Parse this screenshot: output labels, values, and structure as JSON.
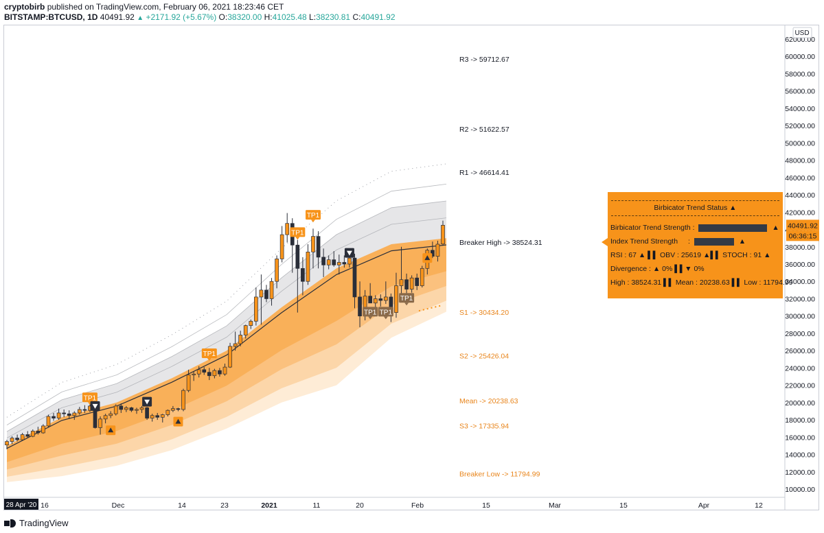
{
  "header": {
    "author": "cryptobirb",
    "published": "published on TradingView.com, February 06, 2021 18:23:46 CET",
    "symbol": "BITSTAMP:BTCUSD, 1D",
    "price": "40491.92",
    "change": "+2171.92 (+5.67%)",
    "open_label": "O:",
    "open": "38320.00",
    "high_label": "H:",
    "high": "41025.48",
    "low_label": "L:",
    "low": "38230.81",
    "close_label": "C:",
    "close": "40491.92"
  },
  "footer": {
    "brand": "TradingView"
  },
  "panel": {
    "title": "Birbicator Trend Status",
    "trend_strength_label": "Birbicator Trend Strength :",
    "trend_strength_value": 0.95,
    "index_strength_label": "Index Trend Strength",
    "index_strength_colon": ":",
    "index_strength_value": 0.55,
    "rsi_row": "RSI : 67 ▲ ▌▌ OBV : 25619 ▲▌▌ STOCH : 91 ▲",
    "divergence_row": "Divergence : ▲ 0% ▌▌▼ 0%",
    "hml_row": "High : 38524.31 ▌▌ Mean : 20238.63 ▌▌ Low : 11794.99"
  },
  "colors": {
    "up_candle": "#f7931a",
    "down_candle": "#2a2e39",
    "band_fill": "#f7931a",
    "grey_fill": "#a5a7ad",
    "tp_dark": "#8a6a4a"
  },
  "chart_data": {
    "type": "candlestick",
    "currency": "USD",
    "ylim": [
      9000,
      63000
    ],
    "y_ticks": [
      "62000.00",
      "60000.00",
      "58000.00",
      "56000.00",
      "54000.00",
      "52000.00",
      "50000.00",
      "48000.00",
      "46000.00",
      "44000.00",
      "42000.00",
      "40000.00",
      "38000.00",
      "36000.00",
      "34000.00",
      "32000.00",
      "30000.00",
      "28000.00",
      "26000.00",
      "24000.00",
      "22000.00",
      "20000.00",
      "18000.00",
      "16000.00",
      "14000.00",
      "12000.00",
      "10000.00"
    ],
    "x_ticks": [
      "16",
      "Dec",
      "14",
      "23",
      "2021",
      "11",
      "20",
      "Feb",
      "15",
      "Mar",
      "15",
      "Apr",
      "12"
    ],
    "x_start_label": "28 Apr '20",
    "last_price_label": "40491.92",
    "countdown_label": "06:36:15",
    "levels": [
      {
        "name": "R3",
        "text": "R3      -> 59712.67",
        "value": 59712.67,
        "style": "dark"
      },
      {
        "name": "R2",
        "text": "R2      -> 51622.57",
        "value": 51622.57,
        "style": "dark"
      },
      {
        "name": "R1",
        "text": "R1      -> 46614.41",
        "value": 46614.41,
        "style": "dark"
      },
      {
        "name": "Breaker High",
        "text": "Breaker High      -> 38524.31",
        "value": 38524.31,
        "style": "dark"
      },
      {
        "name": "S1",
        "text": "S1      -> 30434.20",
        "value": 30434.2,
        "style": "orange"
      },
      {
        "name": "S2",
        "text": "S2      -> 25426.04",
        "value": 25426.04,
        "style": "orange"
      },
      {
        "name": "Mean",
        "text": "Mean      -> 20238.63",
        "value": 20238.63,
        "style": "orange"
      },
      {
        "name": "S3",
        "text": "S3      -> 17335.94",
        "value": 17335.94,
        "style": "orange"
      },
      {
        "name": "Breaker Low",
        "text": "Breaker Low      -> 11794.99",
        "value": 11794.99,
        "style": "orange"
      }
    ],
    "candles": [
      {
        "o": 15100,
        "h": 15700,
        "l": 14600,
        "c": 15500
      },
      {
        "o": 15500,
        "h": 16100,
        "l": 15200,
        "c": 15900
      },
      {
        "o": 15900,
        "h": 16300,
        "l": 15500,
        "c": 15700
      },
      {
        "o": 15700,
        "h": 16500,
        "l": 15600,
        "c": 16300
      },
      {
        "o": 16300,
        "h": 16700,
        "l": 15900,
        "c": 16100
      },
      {
        "o": 16100,
        "h": 16900,
        "l": 16000,
        "c": 16700
      },
      {
        "o": 16700,
        "h": 17200,
        "l": 16300,
        "c": 16500
      },
      {
        "o": 16500,
        "h": 17500,
        "l": 16400,
        "c": 17300
      },
      {
        "o": 17300,
        "h": 18600,
        "l": 17100,
        "c": 18400
      },
      {
        "o": 18400,
        "h": 18800,
        "l": 17900,
        "c": 18200
      },
      {
        "o": 18200,
        "h": 19300,
        "l": 18000,
        "c": 18800
      },
      {
        "o": 18800,
        "h": 19200,
        "l": 18300,
        "c": 18700
      },
      {
        "o": 18700,
        "h": 19100,
        "l": 18100,
        "c": 18500
      },
      {
        "o": 18500,
        "h": 19000,
        "l": 18000,
        "c": 18800
      },
      {
        "o": 18800,
        "h": 19500,
        "l": 18600,
        "c": 19200
      },
      {
        "o": 19200,
        "h": 19700,
        "l": 18800,
        "c": 19100
      },
      {
        "o": 19100,
        "h": 19900,
        "l": 18900,
        "c": 19600
      },
      {
        "o": 19600,
        "h": 19800,
        "l": 17000,
        "c": 17100
      },
      {
        "o": 17100,
        "h": 18400,
        "l": 16300,
        "c": 18100
      },
      {
        "o": 18100,
        "h": 18700,
        "l": 17600,
        "c": 18500
      },
      {
        "o": 18500,
        "h": 19000,
        "l": 18200,
        "c": 18700
      },
      {
        "o": 18700,
        "h": 19800,
        "l": 18500,
        "c": 19600
      },
      {
        "o": 19600,
        "h": 19900,
        "l": 18800,
        "c": 19200
      },
      {
        "o": 19200,
        "h": 19600,
        "l": 18900,
        "c": 19400
      },
      {
        "o": 19400,
        "h": 19500,
        "l": 18900,
        "c": 19100
      },
      {
        "o": 19100,
        "h": 19400,
        "l": 18700,
        "c": 19200
      },
      {
        "o": 19200,
        "h": 19600,
        "l": 18800,
        "c": 19400
      },
      {
        "o": 19400,
        "h": 19500,
        "l": 18000,
        "c": 18200
      },
      {
        "o": 18200,
        "h": 18700,
        "l": 17800,
        "c": 18500
      },
      {
        "o": 18500,
        "h": 18800,
        "l": 18000,
        "c": 18300
      },
      {
        "o": 18300,
        "h": 18700,
        "l": 17700,
        "c": 18600
      },
      {
        "o": 18600,
        "h": 19200,
        "l": 18400,
        "c": 19100
      },
      {
        "o": 19100,
        "h": 19600,
        "l": 18900,
        "c": 19300
      },
      {
        "o": 19300,
        "h": 19400,
        "l": 19000,
        "c": 19200
      },
      {
        "o": 19200,
        "h": 21600,
        "l": 19000,
        "c": 21400
      },
      {
        "o": 21400,
        "h": 23800,
        "l": 21200,
        "c": 23200
      },
      {
        "o": 23200,
        "h": 23600,
        "l": 22500,
        "c": 23300
      },
      {
        "o": 23300,
        "h": 24200,
        "l": 22900,
        "c": 23800
      },
      {
        "o": 23800,
        "h": 24100,
        "l": 23200,
        "c": 23500
      },
      {
        "o": 23500,
        "h": 24000,
        "l": 22600,
        "c": 23100
      },
      {
        "o": 23100,
        "h": 23900,
        "l": 22800,
        "c": 23700
      },
      {
        "o": 23700,
        "h": 24000,
        "l": 23000,
        "c": 23300
      },
      {
        "o": 23300,
        "h": 24500,
        "l": 23100,
        "c": 24100
      },
      {
        "o": 24100,
        "h": 26900,
        "l": 24000,
        "c": 26500
      },
      {
        "o": 26500,
        "h": 28200,
        "l": 26000,
        "c": 26800
      },
      {
        "o": 26800,
        "h": 28300,
        "l": 26500,
        "c": 27800
      },
      {
        "o": 27800,
        "h": 29000,
        "l": 27400,
        "c": 28900
      },
      {
        "o": 28900,
        "h": 29600,
        "l": 28500,
        "c": 29400
      },
      {
        "o": 29400,
        "h": 33300,
        "l": 28900,
        "c": 32200
      },
      {
        "o": 32200,
        "h": 34800,
        "l": 29000,
        "c": 33000
      },
      {
        "o": 33000,
        "h": 33600,
        "l": 31600,
        "c": 32000
      },
      {
        "o": 32000,
        "h": 34400,
        "l": 31200,
        "c": 34000
      },
      {
        "o": 34000,
        "h": 37000,
        "l": 33200,
        "c": 36600
      },
      {
        "o": 36600,
        "h": 40400,
        "l": 36200,
        "c": 39400
      },
      {
        "o": 39400,
        "h": 41900,
        "l": 38500,
        "c": 40700
      },
      {
        "o": 40700,
        "h": 41300,
        "l": 35000,
        "c": 38200
      },
      {
        "o": 38200,
        "h": 38800,
        "l": 30400,
        "c": 35500
      },
      {
        "o": 35500,
        "h": 36800,
        "l": 32400,
        "c": 34000
      },
      {
        "o": 34000,
        "h": 38300,
        "l": 33600,
        "c": 37400
      },
      {
        "o": 37400,
        "h": 40100,
        "l": 35500,
        "c": 39200
      },
      {
        "o": 39200,
        "h": 39800,
        "l": 35500,
        "c": 36800
      },
      {
        "o": 36800,
        "h": 37800,
        "l": 34500,
        "c": 35900
      },
      {
        "o": 35900,
        "h": 37000,
        "l": 35400,
        "c": 36500
      },
      {
        "o": 36500,
        "h": 37500,
        "l": 35700,
        "c": 35900
      },
      {
        "o": 35900,
        "h": 37100,
        "l": 34800,
        "c": 36200
      },
      {
        "o": 36200,
        "h": 37000,
        "l": 35600,
        "c": 36000
      },
      {
        "o": 36000,
        "h": 37800,
        "l": 35600,
        "c": 36700
      },
      {
        "o": 36700,
        "h": 37200,
        "l": 30900,
        "c": 32200
      },
      {
        "o": 32200,
        "h": 34000,
        "l": 28700,
        "c": 30000
      },
      {
        "o": 30000,
        "h": 33000,
        "l": 29500,
        "c": 32300
      },
      {
        "o": 32300,
        "h": 33800,
        "l": 31800,
        "c": 31500
      },
      {
        "o": 31500,
        "h": 32400,
        "l": 30700,
        "c": 32000
      },
      {
        "o": 32000,
        "h": 32500,
        "l": 31100,
        "c": 31800
      },
      {
        "o": 31800,
        "h": 34000,
        "l": 31400,
        "c": 32200
      },
      {
        "o": 32200,
        "h": 32600,
        "l": 29300,
        "c": 30400
      },
      {
        "o": 30400,
        "h": 35000,
        "l": 29800,
        "c": 33500
      },
      {
        "o": 33500,
        "h": 38000,
        "l": 31600,
        "c": 34200
      },
      {
        "o": 34200,
        "h": 34900,
        "l": 32300,
        "c": 33100
      },
      {
        "o": 33100,
        "h": 34700,
        "l": 32700,
        "c": 34400
      },
      {
        "o": 34400,
        "h": 34900,
        "l": 33000,
        "c": 33500
      },
      {
        "o": 33500,
        "h": 35800,
        "l": 33300,
        "c": 35500
      },
      {
        "o": 35500,
        "h": 37800,
        "l": 34800,
        "c": 37600
      },
      {
        "o": 37600,
        "h": 38600,
        "l": 36700,
        "c": 36900
      },
      {
        "o": 36900,
        "h": 38700,
        "l": 36300,
        "c": 38300
      },
      {
        "o": 38320,
        "h": 41025.48,
        "l": 38230.81,
        "c": 40491.92
      }
    ],
    "band_outer": [
      [
        15000,
        10800
      ],
      [
        18300,
        11500
      ],
      [
        20000,
        12700
      ],
      [
        22800,
        14500
      ],
      [
        26000,
        17000
      ],
      [
        31000,
        20000
      ],
      [
        35500,
        22000
      ],
      [
        38300,
        27500
      ],
      [
        39000,
        30500
      ]
    ],
    "signals": [
      {
        "kind": "tp",
        "label": "TP1",
        "candle": 16,
        "value": 20600,
        "style": "orange"
      },
      {
        "kind": "down",
        "candle": 17,
        "value": 19600,
        "style": "dark"
      },
      {
        "kind": "up",
        "candle": 20,
        "value": 16800,
        "style": "orange"
      },
      {
        "kind": "down",
        "candle": 27,
        "value": 20100,
        "style": "dark"
      },
      {
        "kind": "up",
        "candle": 33,
        "value": 17800,
        "style": "orange"
      },
      {
        "kind": "tp",
        "label": "TP1",
        "candle": 39,
        "value": 25700,
        "style": "orange"
      },
      {
        "kind": "tp",
        "label": "TP1",
        "candle": 56,
        "value": 39700,
        "style": "orange"
      },
      {
        "kind": "tp",
        "label": "TP1",
        "candle": 59,
        "value": 41700,
        "style": "orange"
      },
      {
        "kind": "down",
        "candle": 66,
        "value": 37300,
        "style": "dark"
      },
      {
        "kind": "tp",
        "label": "TP1",
        "candle": 70,
        "value": 30500,
        "style": "dark"
      },
      {
        "kind": "tp",
        "label": "TP1",
        "candle": 73,
        "value": 30500,
        "style": "dark"
      },
      {
        "kind": "tp",
        "label": "TP1",
        "candle": 77,
        "value": 32100,
        "style": "dark"
      },
      {
        "kind": "up",
        "candle": 81,
        "value": 36700,
        "style": "orange"
      }
    ]
  }
}
